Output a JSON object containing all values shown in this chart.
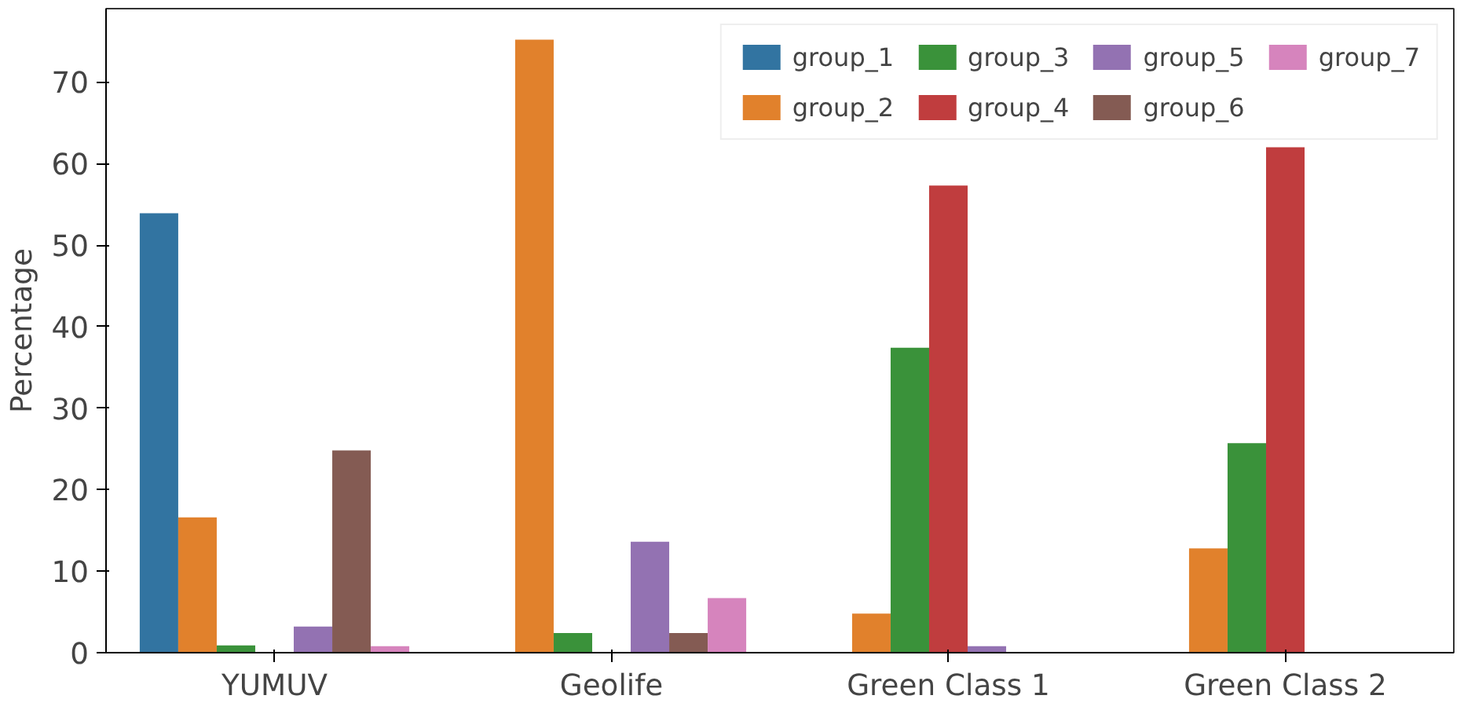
{
  "chart_data": {
    "type": "bar",
    "ylabel": "Percentage",
    "categories": [
      "YUMUV",
      "Geolife",
      "Green Class 1",
      "Green Class 2"
    ],
    "series": [
      {
        "name": "group_1",
        "color": "#3274a1",
        "values": [
          53.9,
          0,
          0,
          0
        ]
      },
      {
        "name": "group_2",
        "color": "#e1812c",
        "values": [
          16.6,
          75.2,
          4.8,
          12.8
        ]
      },
      {
        "name": "group_3",
        "color": "#3a923a",
        "values": [
          0.9,
          2.4,
          37.4,
          25.7
        ]
      },
      {
        "name": "group_4",
        "color": "#c03d3e",
        "values": [
          0,
          0,
          57.3,
          62.0
        ]
      },
      {
        "name": "group_5",
        "color": "#9372b2",
        "values": [
          3.2,
          13.6,
          0.8,
          0
        ]
      },
      {
        "name": "group_6",
        "color": "#845b53",
        "values": [
          24.8,
          2.4,
          0,
          0
        ]
      },
      {
        "name": "group_7",
        "color": "#d684bd",
        "values": [
          0.8,
          6.7,
          0,
          0
        ]
      }
    ],
    "ylim": [
      0,
      79
    ],
    "yticks": [
      0,
      10,
      20,
      30,
      40,
      50,
      60,
      70
    ],
    "grid": false,
    "legend": "top right"
  }
}
